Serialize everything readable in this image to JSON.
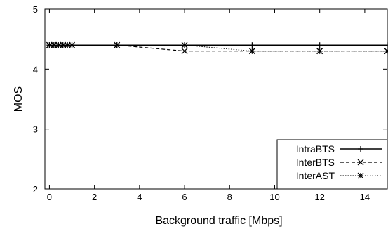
{
  "chart_data": {
    "type": "line",
    "title": "",
    "xlabel": "Background traffic [Mbps]",
    "ylabel": "MOS",
    "xlim": [
      -0.2,
      15
    ],
    "ylim": [
      2,
      5
    ],
    "x_ticks": [
      "0",
      "2",
      "4",
      "6",
      "8",
      "10",
      "12",
      "14"
    ],
    "y_ticks": [
      "2",
      "3",
      "4",
      "5"
    ],
    "grid": false,
    "legend_position": "bottom-right",
    "series": [
      {
        "name": "IntraBTS",
        "marker": "plus",
        "line_style": "solid",
        "x": [
          0,
          0.2,
          0.4,
          0.6,
          0.8,
          1,
          3,
          6,
          9,
          12,
          15
        ],
        "y": [
          4.4,
          4.4,
          4.4,
          4.4,
          4.4,
          4.4,
          4.4,
          4.4,
          4.4,
          4.4,
          4.4
        ]
      },
      {
        "name": "InterBTS",
        "marker": "cross",
        "line_style": "dashed",
        "x": [
          0,
          0.2,
          0.4,
          0.6,
          0.8,
          1,
          3,
          6,
          9,
          12,
          15
        ],
        "y": [
          4.4,
          4.4,
          4.4,
          4.4,
          4.4,
          4.4,
          4.4,
          4.3,
          4.3,
          4.3,
          4.3
        ]
      },
      {
        "name": "InterAST",
        "marker": "star",
        "line_style": "dotted",
        "x": [
          0,
          0.2,
          0.4,
          0.6,
          0.8,
          1,
          3,
          6,
          9,
          12,
          15
        ],
        "y": [
          4.4,
          4.4,
          4.4,
          4.4,
          4.4,
          4.4,
          4.4,
          4.4,
          4.3,
          4.3,
          4.3
        ]
      }
    ]
  }
}
